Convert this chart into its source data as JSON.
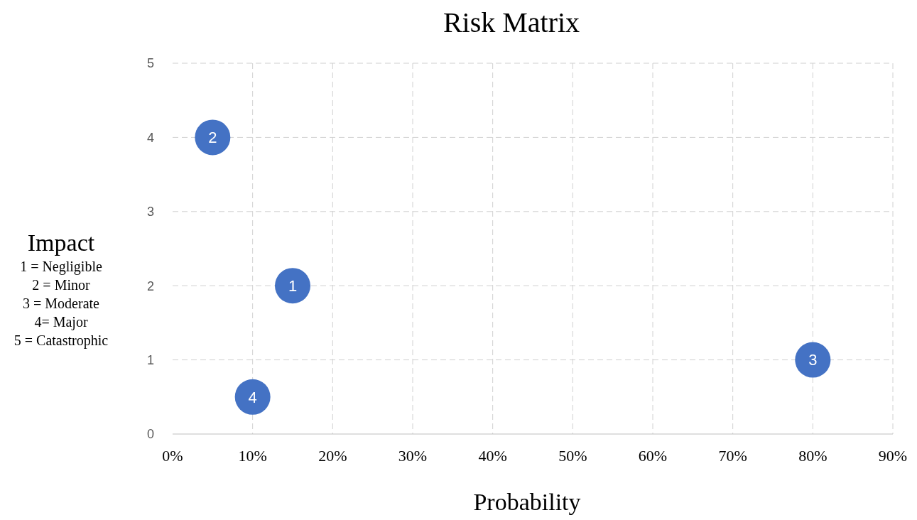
{
  "chart_data": {
    "type": "scatter",
    "title": "Risk Matrix",
    "xlabel": "Probability",
    "ylabel": "Impact",
    "x": [
      15,
      5,
      80,
      10
    ],
    "values": [
      2,
      4,
      1,
      0.5
    ],
    "color": "#4472c4",
    "marker": "circle",
    "xlim": [
      0,
      90
    ],
    "xticks": [
      {
        "value": 0,
        "label": "0%"
      },
      {
        "value": 10,
        "label": "10%"
      },
      {
        "value": 20,
        "label": "20%"
      },
      {
        "value": 30,
        "label": "30%"
      },
      {
        "value": 40,
        "label": "40%"
      },
      {
        "value": 50,
        "label": "50%"
      },
      {
        "value": 60,
        "label": "60%"
      },
      {
        "value": 70,
        "label": "70%"
      },
      {
        "value": 80,
        "label": "80%"
      },
      {
        "value": 90,
        "label": "90%"
      }
    ],
    "ylim": [
      0,
      5
    ],
    "yticks": [
      0,
      1,
      2,
      3,
      4,
      5
    ],
    "grid": true,
    "annotations": [
      {
        "text": "1",
        "x": 15,
        "y": 2
      },
      {
        "text": "2",
        "x": 5,
        "y": 4
      },
      {
        "text": "3",
        "x": 80,
        "y": 1
      },
      {
        "text": "4",
        "x": 10,
        "y": 0.5
      },
      "1 = Negligible",
      "2 = Minor",
      "3 = Moderate",
      "4= Major",
      "5 = Catastrophic"
    ]
  }
}
